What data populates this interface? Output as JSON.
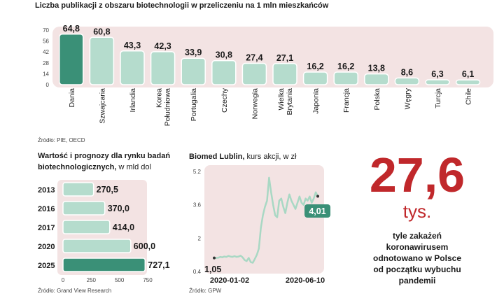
{
  "chart_data": [
    {
      "type": "bar",
      "title": "Liczba publikacji z obszaru biotechnologii w przeliczeniu na 1 mln mieszkańców",
      "categories": [
        "Dania",
        "Szwajcaria",
        "Irlandia",
        "Korea Południowa",
        "Portugalia",
        "Czechy",
        "Norwegia",
        "Wielka Brytania",
        "Japonia",
        "Francja",
        "Polska",
        "Węgry",
        "Turcja",
        "Chile"
      ],
      "category_lines": [
        [
          "Dania"
        ],
        [
          "Szwajcaria"
        ],
        [
          "Irlandia"
        ],
        [
          "Korea",
          "Południowa"
        ],
        [
          "Portugalia"
        ],
        [
          "Czechy"
        ],
        [
          "Norwegia"
        ],
        [
          "Wielka",
          "Brytania"
        ],
        [
          "Japonia"
        ],
        [
          "Francja"
        ],
        [
          "Polska"
        ],
        [
          "Węgry"
        ],
        [
          "Turcja"
        ],
        [
          "Chile"
        ]
      ],
      "values": [
        64.8,
        60.8,
        43.3,
        42.3,
        33.9,
        30.8,
        27.4,
        27.1,
        16.2,
        16.2,
        13.8,
        8.6,
        6.3,
        6.1
      ],
      "value_labels": [
        "64,8",
        "60,8",
        "43,3",
        "42,3",
        "33,9",
        "30,8",
        "27,4",
        "27,1",
        "16,2",
        "16,2",
        "13,8",
        "8,6",
        "6,3",
        "6,1"
      ],
      "y_ticks": [
        "70",
        "56",
        "42",
        "28",
        "14",
        "0"
      ],
      "ylim": [
        0,
        70
      ],
      "highlight_index": 0,
      "source": "Źródło: PIE, OECD"
    },
    {
      "type": "bar",
      "orientation": "horizontal",
      "title": "Wartość  i prognozy dla rynku badań biotechnologicznych,",
      "title_unit": "w mld dol",
      "categories": [
        "2013",
        "2016",
        "2017",
        "2020",
        "2025"
      ],
      "values": [
        270.5,
        370.0,
        414.0,
        600.0,
        727.1
      ],
      "value_labels": [
        "270,5",
        "370,0",
        "414,0",
        "600,0",
        "727,1"
      ],
      "x_ticks": [
        "0",
        "250",
        "500",
        "750"
      ],
      "xlim": [
        0,
        750
      ],
      "highlight_index": 4,
      "source": "Źródło:  Grand View Research"
    },
    {
      "type": "line",
      "title": "Biomed Lublin,",
      "title_unit": "kurs akcji, w zł",
      "x_tick_labels": [
        "2020-01-02",
        "2020-06-10"
      ],
      "y_ticks": [
        "5.2",
        "3.6",
        "2",
        "0.4"
      ],
      "ylim": [
        0.4,
        5.2
      ],
      "start_label": "1,05",
      "end_label": "4,01",
      "series": [
        {
          "values": [
            1.05,
            1.05,
            1.06,
            1.1,
            1.08,
            1.12,
            1.1,
            1.15,
            1.12,
            1.1,
            1.14,
            1.1,
            1.12,
            1.16,
            1.08,
            0.95,
            0.9,
            1.05,
            0.85,
            0.82,
            1.0,
            1.2,
            1.5,
            2.5,
            3.1,
            3.5,
            3.8,
            4.9,
            4.2,
            3.6,
            3.1,
            3.0,
            3.8,
            3.9,
            3.5,
            3.2,
            3.7,
            4.1,
            3.8,
            3.6,
            3.4,
            3.7,
            4.0,
            3.7,
            3.6,
            3.9,
            3.8,
            4.0,
            3.7,
            3.9,
            4.2,
            4.01
          ]
        }
      ],
      "source": "Źródło: GPW"
    }
  ],
  "stat": {
    "value": "27,6",
    "unit": "tys.",
    "caption_lines": [
      "tyle  zakażeń",
      "koronawirusem",
      "odnotowano w Polsce",
      "od początku wybuchu",
      "pandemii"
    ]
  },
  "colors": {
    "bar": "#b5dccd",
    "bar_highlight": "#3a9077",
    "bar_outline": "#ffffff",
    "panel_bg": "#f3e3e3",
    "line": "#a9d8c4",
    "accent_text": "#c0282b"
  }
}
